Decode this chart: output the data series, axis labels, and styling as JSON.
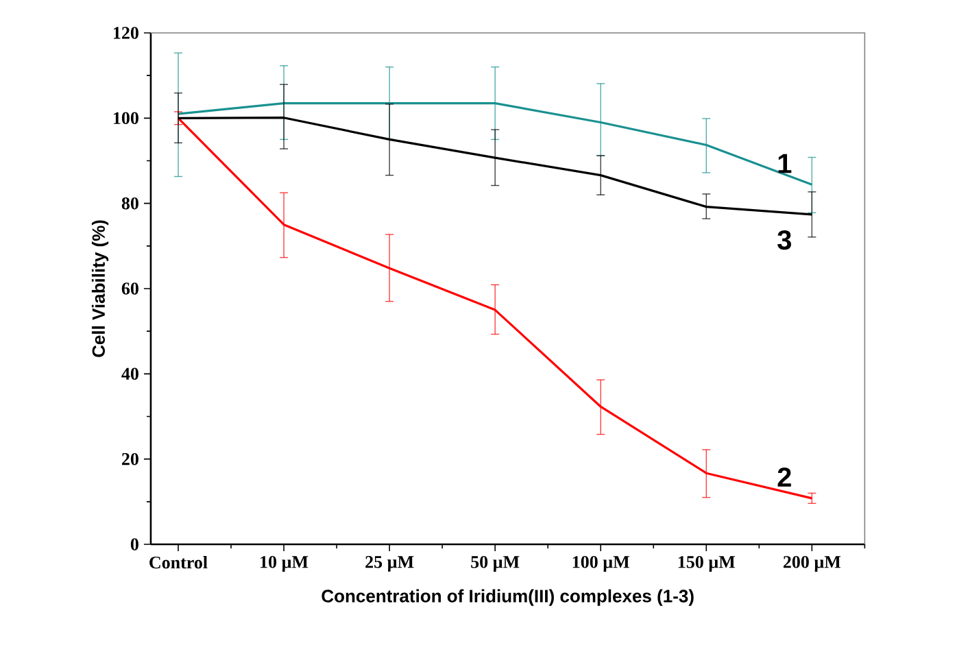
{
  "chart_data": {
    "type": "line",
    "xlabel": "Concentration of Iridium(III) complexes (1-3)",
    "ylabel": "Cell Viability (%)",
    "categories": [
      "Control",
      "10 µM",
      "25 µM",
      "50 µM",
      "100 µM",
      "150 µM",
      "200 µM"
    ],
    "ylim": [
      0,
      120
    ],
    "yticks": [
      0,
      20,
      40,
      60,
      80,
      100,
      120
    ],
    "grid": false,
    "legend": false,
    "marker": "none",
    "line_style": "solid",
    "series": [
      {
        "name": "1",
        "color": "#1a9090",
        "values": [
          101,
          103.5,
          103.5,
          103.5,
          99,
          93.7,
          84.4
        ],
        "errors": [
          [
            86.3,
            115.3
          ],
          [
            95,
            112.3
          ],
          [
            95,
            112
          ],
          [
            95,
            112
          ],
          [
            91.2,
            108.1
          ],
          [
            87.2,
            99.9
          ],
          [
            77.8,
            90.8
          ]
        ]
      },
      {
        "name": "2",
        "color": "#ff0000",
        "values": [
          100,
          75,
          64.8,
          55,
          32.3,
          16.7,
          10.8
        ],
        "errors": [
          [
            98.5,
            101.5
          ],
          [
            67.3,
            82.5
          ],
          [
            57,
            72.7
          ],
          [
            49.3,
            60.9
          ],
          [
            25.8,
            38.6
          ],
          [
            11,
            22.2
          ],
          [
            9.6,
            12
          ]
        ]
      },
      {
        "name": "3",
        "color": "#000000",
        "values": [
          100,
          100.1,
          95,
          90.7,
          86.6,
          79.2,
          77.4
        ],
        "errors": [
          [
            94.2,
            105.9
          ],
          [
            92.8,
            107.9
          ],
          [
            86.6,
            103.3
          ],
          [
            84.2,
            97.3
          ],
          [
            82,
            91.2
          ],
          [
            76.4,
            82.2
          ],
          [
            72.1,
            82.7
          ]
        ]
      }
    ]
  }
}
